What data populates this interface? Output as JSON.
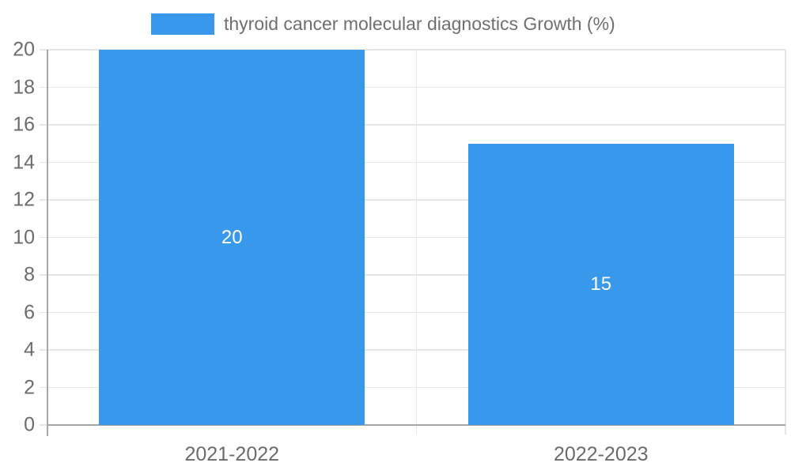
{
  "chart_data": {
    "type": "bar",
    "legend": "thyroid cancer molecular diagnostics Growth (%)",
    "legend_position": "top",
    "categories": [
      "2021-2022",
      "2022-2023"
    ],
    "values": [
      20,
      15
    ],
    "value_labels": [
      "20",
      "15"
    ],
    "xlabel": "",
    "ylabel": "",
    "ylim": [
      0,
      20
    ],
    "y_ticks": [
      0,
      2,
      4,
      6,
      8,
      10,
      12,
      14,
      16,
      18,
      20
    ],
    "grid": true,
    "bar_width_fraction": 0.72,
    "colors": {
      "bar": "#3899ec",
      "grid": "#e6e6e6",
      "axis": "#a6a6a6",
      "text": "#6b6b6b",
      "value_text": "#ffffff",
      "background": "#ffffff"
    }
  }
}
